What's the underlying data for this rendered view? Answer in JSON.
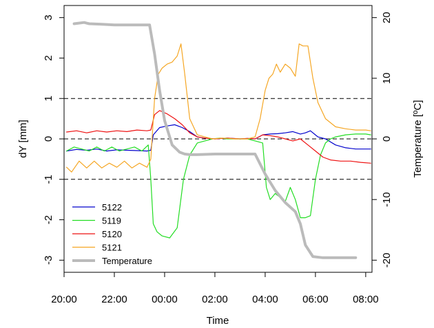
{
  "chart_data": {
    "type": "line",
    "title": "",
    "xlabel": "Time",
    "ylabel": "dY [mm]",
    "y2label": "Temperature [ºC]",
    "xlim": [
      20.0,
      32.25
    ],
    "ylim": [
      -3.3,
      3.3
    ],
    "y2lim": [
      -22.0,
      22.0
    ],
    "x_ticks": [
      20,
      22,
      24,
      26,
      28,
      30,
      32
    ],
    "x_tick_labels": [
      "20:00",
      "22:00",
      "00:00",
      "02:00",
      "04:00",
      "06:00",
      "08:00"
    ],
    "y_ticks": [
      -3,
      -2,
      -1,
      0,
      1,
      2,
      3
    ],
    "y_tick_labels": [
      "-3",
      "-2",
      "-1",
      "0",
      "1",
      "2",
      "3"
    ],
    "y2_ticks": [
      -20,
      -10,
      0,
      10,
      20
    ],
    "y2_tick_labels": [
      "-20",
      "-10",
      "0",
      "10",
      "20"
    ],
    "reference_lines": [
      1,
      0,
      -1
    ],
    "grid": false,
    "legend_position": "bottom-left",
    "series": [
      {
        "name": "5122",
        "color": "#0000cc",
        "axis": "left",
        "x": [
          20.1,
          20.5,
          20.9,
          21.3,
          21.7,
          22.1,
          22.5,
          22.9,
          23.3,
          23.45,
          23.55,
          23.8,
          24.1,
          24.4,
          24.7,
          25.0,
          25.3,
          25.6,
          26.0,
          26.5,
          27.0,
          27.3,
          27.6,
          27.9,
          28.2,
          28.5,
          28.8,
          29.1,
          29.4,
          29.6,
          29.8,
          30.1,
          30.4,
          30.8,
          31.2,
          31.6,
          32.0,
          32.2
        ],
        "y": [
          -0.3,
          -0.26,
          -0.28,
          -0.25,
          -0.3,
          -0.27,
          -0.28,
          -0.29,
          -0.3,
          -0.28,
          0.1,
          0.28,
          0.32,
          0.35,
          0.28,
          0.18,
          0.05,
          0.02,
          0.0,
          0.02,
          0.0,
          0.01,
          0.0,
          0.1,
          0.12,
          0.13,
          0.15,
          0.18,
          0.12,
          0.15,
          0.2,
          0.05,
          0.0,
          -0.15,
          -0.22,
          -0.25,
          -0.25,
          -0.25
        ]
      },
      {
        "name": "5119",
        "color": "#22dd22",
        "axis": "left",
        "x": [
          20.1,
          20.4,
          20.7,
          21.0,
          21.3,
          21.6,
          21.9,
          22.2,
          22.5,
          22.8,
          23.1,
          23.35,
          23.45,
          23.55,
          23.7,
          23.9,
          24.2,
          24.5,
          24.75,
          25.0,
          25.3,
          25.6,
          25.9,
          26.2,
          26.5,
          27.0,
          27.3,
          27.6,
          27.9,
          28.05,
          28.2,
          28.4,
          28.6,
          28.8,
          29.0,
          29.2,
          29.4,
          29.6,
          29.8,
          30.0,
          30.2,
          30.4,
          30.6,
          30.8,
          31.2,
          31.6,
          32.0,
          32.2
        ],
        "y": [
          -0.3,
          -0.2,
          -0.25,
          -0.3,
          -0.2,
          -0.3,
          -0.2,
          -0.3,
          -0.25,
          -0.2,
          -0.3,
          -0.15,
          -1.0,
          -2.1,
          -2.3,
          -2.4,
          -2.45,
          -2.2,
          -1.0,
          -0.4,
          -0.1,
          -0.05,
          0.0,
          0.02,
          0.0,
          0.0,
          0.0,
          -0.05,
          -0.1,
          -1.2,
          -1.5,
          -1.35,
          -1.45,
          -1.55,
          -1.2,
          -1.5,
          -1.95,
          -1.95,
          -1.9,
          -1.0,
          -0.4,
          -0.1,
          0.0,
          0.05,
          0.1,
          0.12,
          0.12,
          0.1
        ]
      },
      {
        "name": "5120",
        "color": "#ee1111",
        "axis": "left",
        "x": [
          20.1,
          20.5,
          20.9,
          21.3,
          21.7,
          22.1,
          22.5,
          22.9,
          23.3,
          23.45,
          23.6,
          23.8,
          24.1,
          24.4,
          24.7,
          25.0,
          25.3,
          25.6,
          26.0,
          26.5,
          27.0,
          27.3,
          27.6,
          27.9,
          28.2,
          28.5,
          28.8,
          29.1,
          29.4,
          29.7,
          30.0,
          30.3,
          30.6,
          31.0,
          31.4,
          31.8,
          32.2
        ],
        "y": [
          0.17,
          0.2,
          0.15,
          0.2,
          0.17,
          0.2,
          0.18,
          0.22,
          0.2,
          0.22,
          0.6,
          0.7,
          0.62,
          0.5,
          0.35,
          0.15,
          0.05,
          0.02,
          0.0,
          0.02,
          0.0,
          0.01,
          0.0,
          0.1,
          0.08,
          0.05,
          0.0,
          -0.05,
          0.0,
          -0.15,
          -0.3,
          -0.45,
          -0.52,
          -0.55,
          -0.55,
          -0.58,
          -0.6
        ]
      },
      {
        "name": "5121",
        "color": "#f5a623",
        "axis": "left",
        "x": [
          20.1,
          20.3,
          20.6,
          20.9,
          21.2,
          21.5,
          21.8,
          22.1,
          22.4,
          22.7,
          23.0,
          23.3,
          23.45,
          23.6,
          23.75,
          23.9,
          24.1,
          24.3,
          24.5,
          24.65,
          24.8,
          25.0,
          25.3,
          25.6,
          25.9,
          26.3,
          26.8,
          27.3,
          27.6,
          27.8,
          28.0,
          28.15,
          28.3,
          28.45,
          28.6,
          28.8,
          29.0,
          29.2,
          29.35,
          29.5,
          29.7,
          29.9,
          30.1,
          30.4,
          30.8,
          31.2,
          31.6,
          32.0,
          32.2
        ],
        "y": [
          -0.7,
          -0.82,
          -0.55,
          -0.72,
          -0.55,
          -0.72,
          -0.6,
          -0.7,
          -0.55,
          -0.72,
          -0.6,
          -0.7,
          -0.5,
          1.0,
          1.6,
          1.75,
          1.85,
          1.9,
          2.05,
          2.35,
          1.6,
          0.5,
          0.1,
          0.05,
          0.0,
          0.02,
          0.0,
          0.0,
          0.05,
          0.5,
          1.2,
          1.5,
          1.6,
          1.85,
          1.65,
          1.85,
          1.75,
          1.55,
          2.35,
          2.3,
          2.3,
          1.5,
          0.9,
          0.5,
          0.3,
          0.25,
          0.22,
          0.22,
          0.2
        ]
      },
      {
        "name": "Temperature",
        "color": "#bbbbbb",
        "axis": "right",
        "x": [
          20.4,
          20.8,
          21.0,
          21.5,
          22.0,
          22.5,
          23.0,
          23.4,
          23.6,
          23.8,
          24.0,
          24.3,
          24.6,
          24.8,
          25.0,
          25.3,
          26.0,
          27.0,
          27.6,
          28.0,
          28.4,
          28.8,
          29.2,
          29.4,
          29.6,
          29.9,
          30.3,
          31.0,
          31.6
        ],
        "y": [
          19.0,
          19.2,
          19.0,
          18.9,
          18.8,
          18.8,
          18.8,
          18.8,
          14.0,
          8.0,
          3.0,
          -1.0,
          -2.2,
          -2.5,
          -2.6,
          -2.6,
          -2.5,
          -2.5,
          -2.5,
          -5.8,
          -8.5,
          -10.5,
          -12.0,
          -14.0,
          -17.5,
          -19.4,
          -19.6,
          -19.6,
          -19.6
        ]
      }
    ]
  }
}
